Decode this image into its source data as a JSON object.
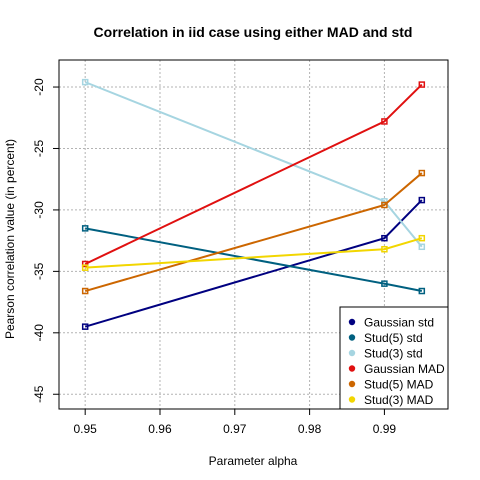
{
  "chart_data": {
    "type": "line",
    "title": "Correlation in iid case using either MAD and std",
    "xlabel": "Parameter alpha",
    "ylabel": "Pearson correlation value (in percent)",
    "x": [
      0.95,
      0.99,
      0.995
    ],
    "xlim": [
      0.9465,
      0.9985
    ],
    "ylim": [
      -46.2,
      -17.8
    ],
    "xticks": [
      0.95,
      0.96,
      0.97,
      0.98,
      0.99
    ],
    "xtick_labels": [
      "0.95",
      "0.96",
      "0.97",
      "0.98",
      "0.99"
    ],
    "yticks": [
      -45,
      -40,
      -35,
      -30,
      -25,
      -20
    ],
    "ytick_labels": [
      "-45",
      "-40",
      "-35",
      "-30",
      "-25",
      "-20"
    ],
    "grid": true,
    "legend_position": "bottom-right",
    "series": [
      {
        "name": "Gaussian std",
        "color": "#000080",
        "values": [
          -39.5,
          -32.3,
          -29.2
        ]
      },
      {
        "name": "Stud(5) std",
        "color": "#006080",
        "values": [
          -31.5,
          -36.0,
          -36.6
        ]
      },
      {
        "name": "Stud(3) std",
        "color": "#A6D5E1",
        "values": [
          -19.6,
          -29.3,
          -33.0
        ]
      },
      {
        "name": "Gaussian MAD",
        "color": "#E01010",
        "values": [
          -34.4,
          -22.8,
          -19.8
        ]
      },
      {
        "name": "Stud(5) MAD",
        "color": "#CC6600",
        "values": [
          -36.6,
          -29.6,
          -27.0
        ]
      },
      {
        "name": "Stud(3) MAD",
        "color": "#F2D600",
        "values": [
          -34.7,
          -33.2,
          -32.3
        ]
      }
    ]
  }
}
